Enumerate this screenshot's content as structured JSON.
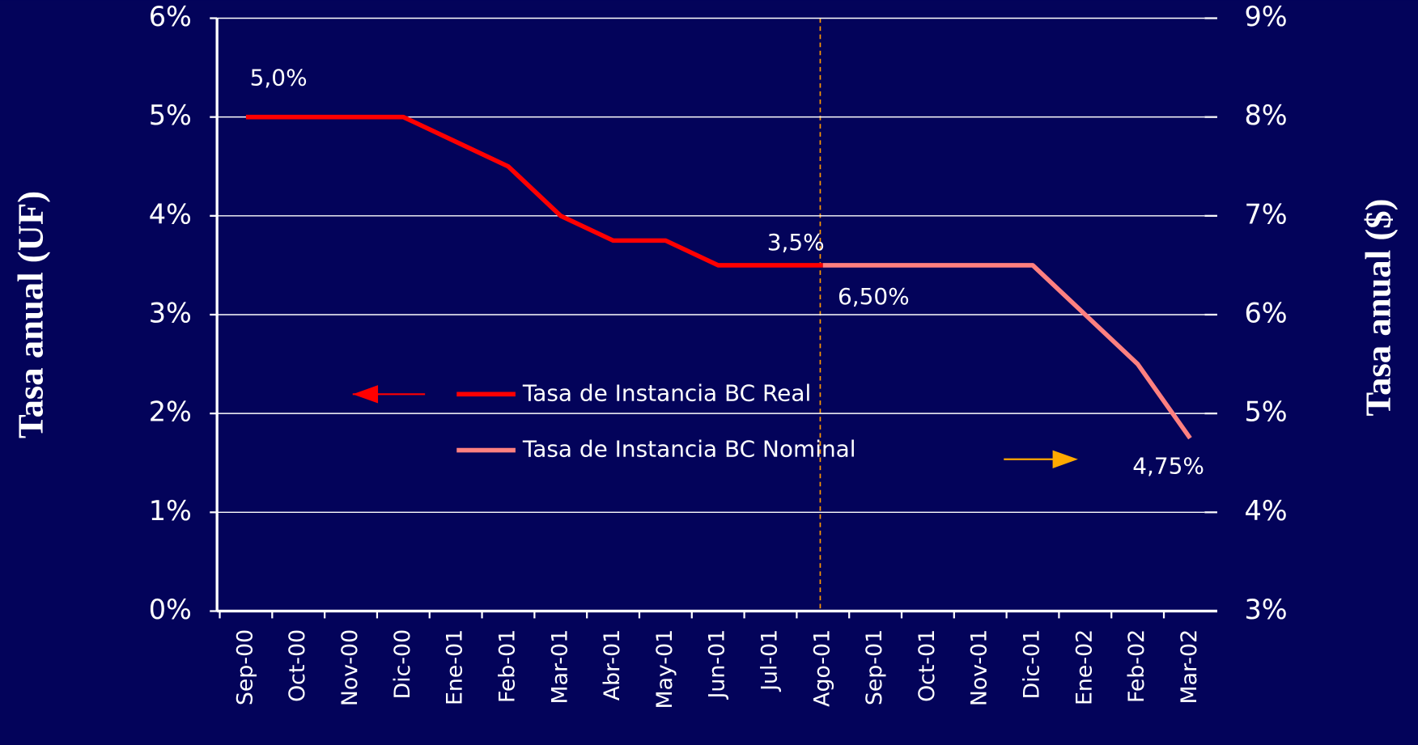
{
  "chart_data": {
    "type": "line",
    "y_label": "Tasa anual (UF)",
    "y2_label": "Tasa anual ($)",
    "categories": [
      "Sep-00",
      "Oct-00",
      "Nov-00",
      "Dic-00",
      "Ene-01",
      "Feb-01",
      "Mar-01",
      "Abr-01",
      "May-01",
      "Jun-01",
      "Jul-01",
      "Ago-01",
      "Sep-01",
      "Oct-01",
      "Nov-01",
      "Dic-01",
      "Ene-02",
      "Feb-02",
      "Mar-02"
    ],
    "series": [
      {
        "name": "Tasa de Instancia BC Real",
        "color": "#ff0000",
        "axis": "y",
        "values": [
          5,
          5,
          5,
          5,
          4.75,
          4.5,
          4,
          3.75,
          3.75,
          3.5,
          3.5,
          3.5,
          null,
          null,
          null,
          null,
          null,
          null,
          null
        ],
        "value_labels": [
          "5,0%",
          null,
          null,
          null,
          null,
          null,
          null,
          null,
          null,
          null,
          null,
          "3,5%",
          null,
          null,
          null,
          null,
          null,
          null,
          null
        ]
      },
      {
        "name": "Tasa de Instancia BC Nominal",
        "color": "#ff8080",
        "axis": "y2",
        "values": [
          null,
          null,
          null,
          null,
          null,
          null,
          null,
          null,
          null,
          null,
          null,
          6.5,
          6.5,
          6.5,
          6.5,
          6.5,
          6,
          5.5,
          4.75
        ],
        "value_labels": [
          null,
          null,
          null,
          null,
          null,
          null,
          null,
          null,
          null,
          null,
          null,
          "6,50%",
          null,
          null,
          null,
          null,
          null,
          null,
          "4,75%"
        ]
      }
    ],
    "ylim": [
      0,
      6
    ],
    "yticks": [
      {
        "value": 0,
        "label": "0%"
      },
      {
        "value": 1,
        "label": "1%"
      },
      {
        "value": 2,
        "label": "2%"
      },
      {
        "value": 3,
        "label": "3%"
      },
      {
        "value": 4,
        "label": "4%"
      },
      {
        "value": 5,
        "label": "5%"
      },
      {
        "value": 6,
        "label": "6%"
      }
    ],
    "y2lim": [
      3,
      9
    ],
    "y2ticks": [
      {
        "value": 3,
        "label": "3%"
      },
      {
        "value": 4,
        "label": "4%"
      },
      {
        "value": 5,
        "label": "5%"
      },
      {
        "value": 6,
        "label": "6%"
      },
      {
        "value": 7,
        "label": "7%"
      },
      {
        "value": 8,
        "label": "8%"
      },
      {
        "value": 9,
        "label": "9%"
      }
    ],
    "grid": true
  }
}
